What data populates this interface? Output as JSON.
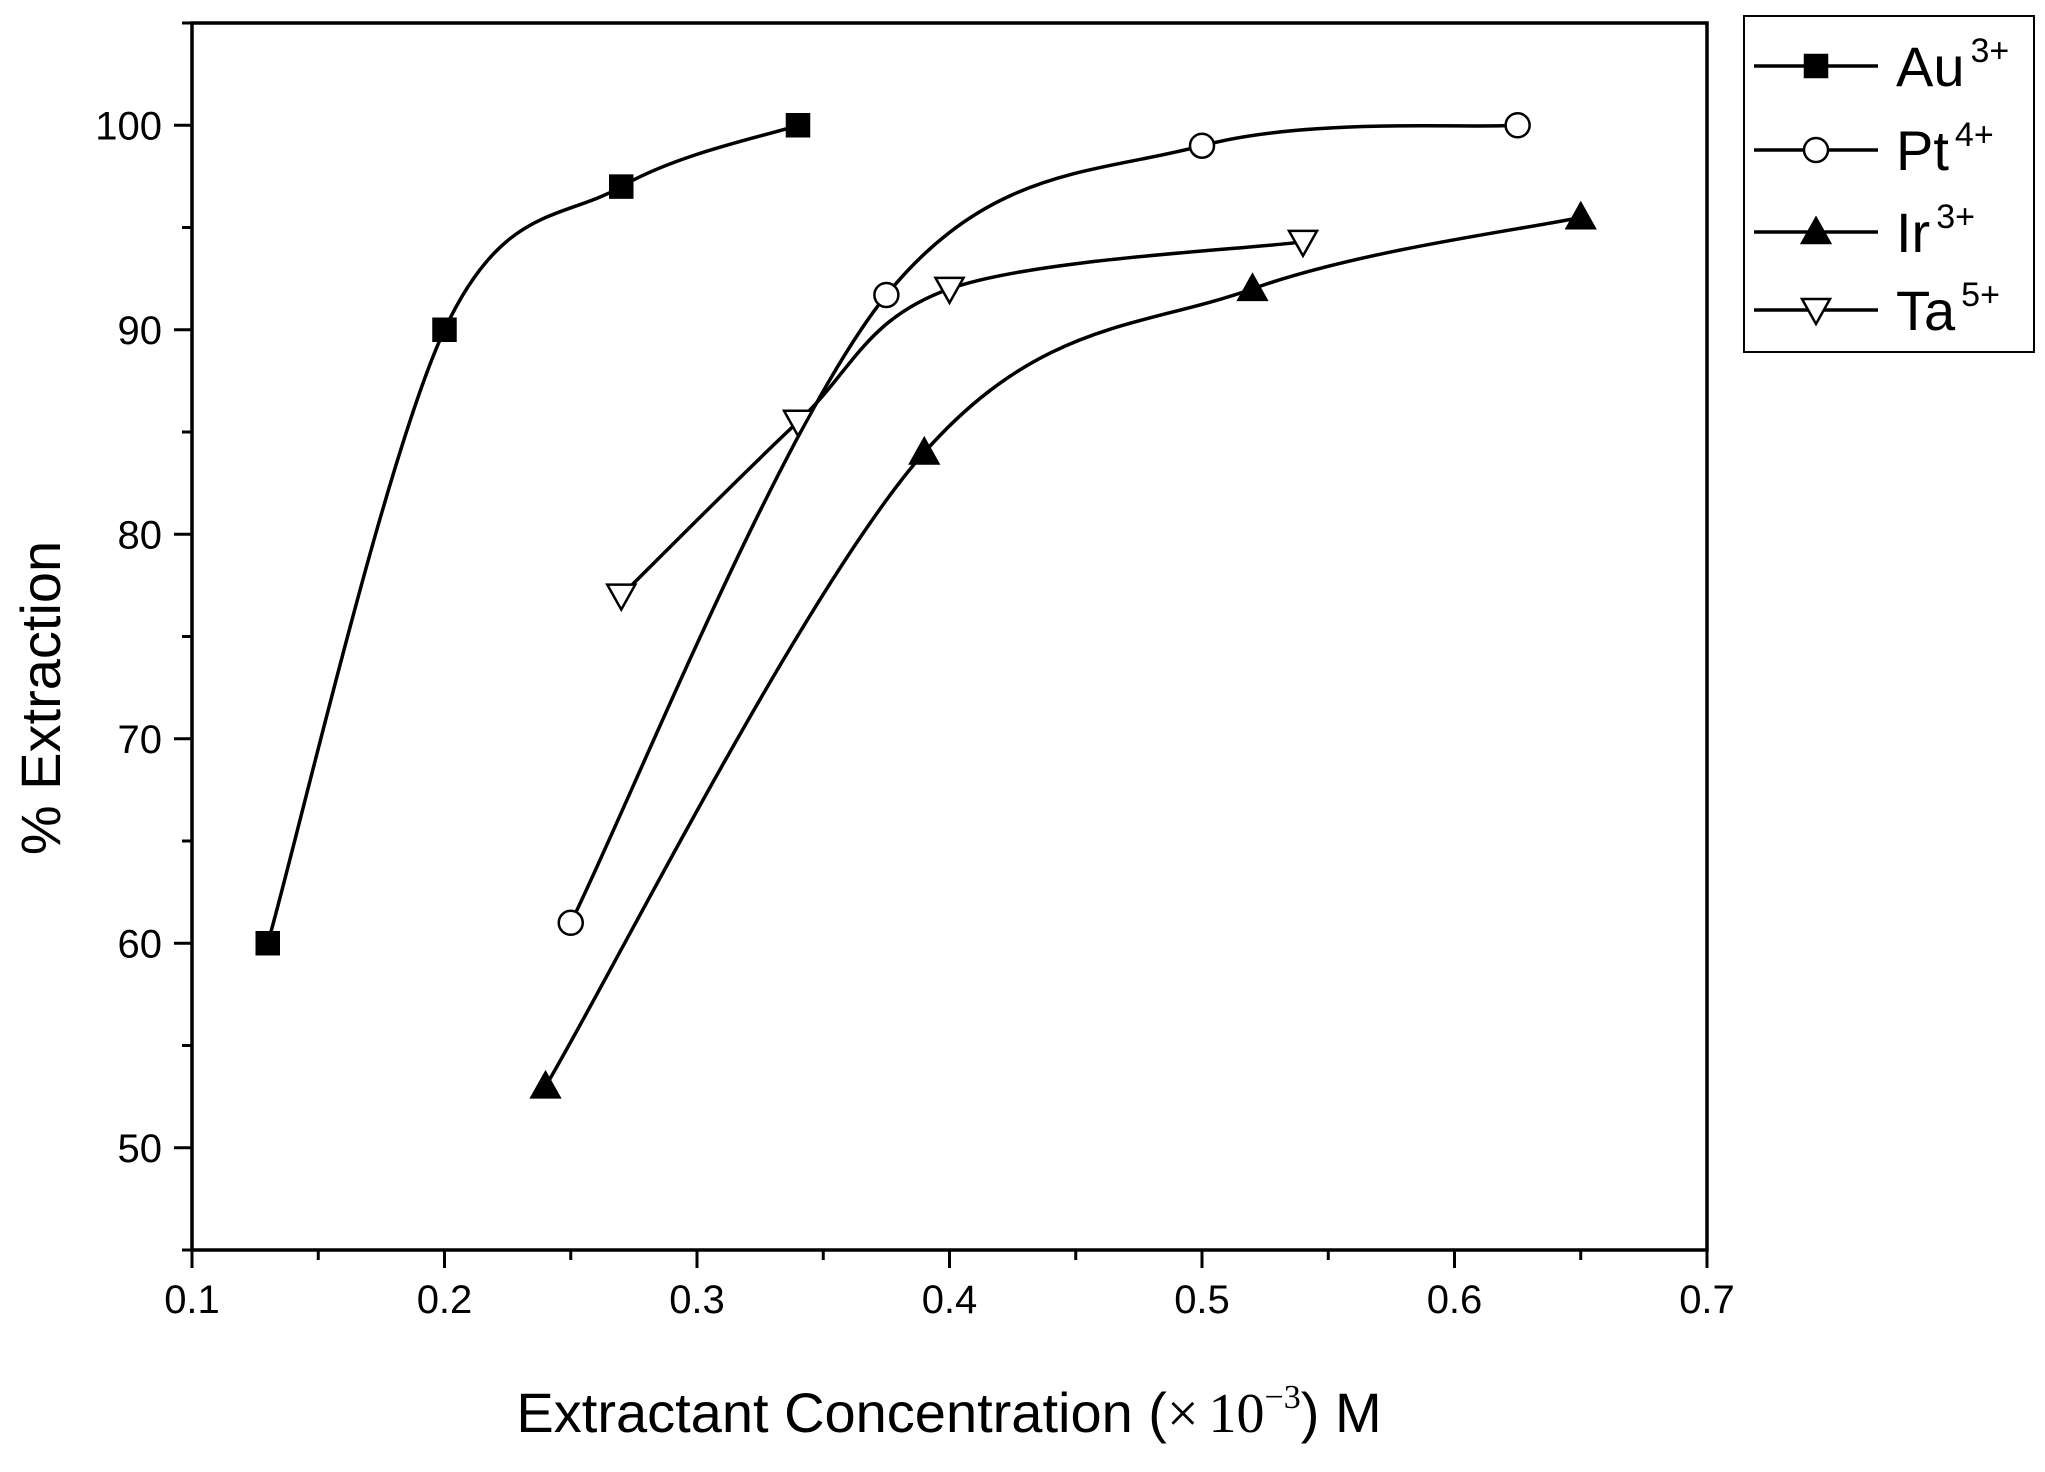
{
  "chart_data": {
    "type": "line",
    "xlabel": {
      "prefix": "Extractant Concentration (",
      "times": "×",
      "base": "10",
      "exp": "−3",
      "suffix": ") M"
    },
    "ylabel": "% Extraction",
    "xlim": [
      0.1,
      0.7
    ],
    "ylim": [
      45,
      105
    ],
    "xticks": [
      0.1,
      0.2,
      0.3,
      0.4,
      0.5,
      0.6,
      0.7
    ],
    "xtick_labels": [
      "0.1",
      "0.2",
      "0.3",
      "0.4",
      "0.5",
      "0.6",
      "0.7"
    ],
    "yticks": [
      50,
      60,
      70,
      80,
      90,
      100
    ],
    "ytick_labels": [
      "50",
      "60",
      "70",
      "80",
      "90",
      "100"
    ],
    "grid": false,
    "legend_position": "outside-top-right",
    "series": [
      {
        "name": "Au",
        "charge": "3+",
        "marker": "square-filled",
        "x": [
          0.13,
          0.2,
          0.27,
          0.34
        ],
        "y": [
          60,
          90,
          97,
          100
        ]
      },
      {
        "name": "Pt",
        "charge": "4+",
        "marker": "circle-open",
        "x": [
          0.25,
          0.375,
          0.5,
          0.625
        ],
        "y": [
          61,
          91.7,
          99,
          100
        ]
      },
      {
        "name": "Ir",
        "charge": "3+",
        "marker": "triangle-up-filled",
        "x": [
          0.24,
          0.39,
          0.52,
          0.65
        ],
        "y": [
          53,
          84,
          92,
          95.5
        ]
      },
      {
        "name": "Ta",
        "charge": "5+",
        "marker": "triangle-down-open",
        "x": [
          0.27,
          0.34,
          0.4,
          0.54
        ],
        "y": [
          77,
          85.5,
          92,
          94.3
        ]
      }
    ]
  }
}
